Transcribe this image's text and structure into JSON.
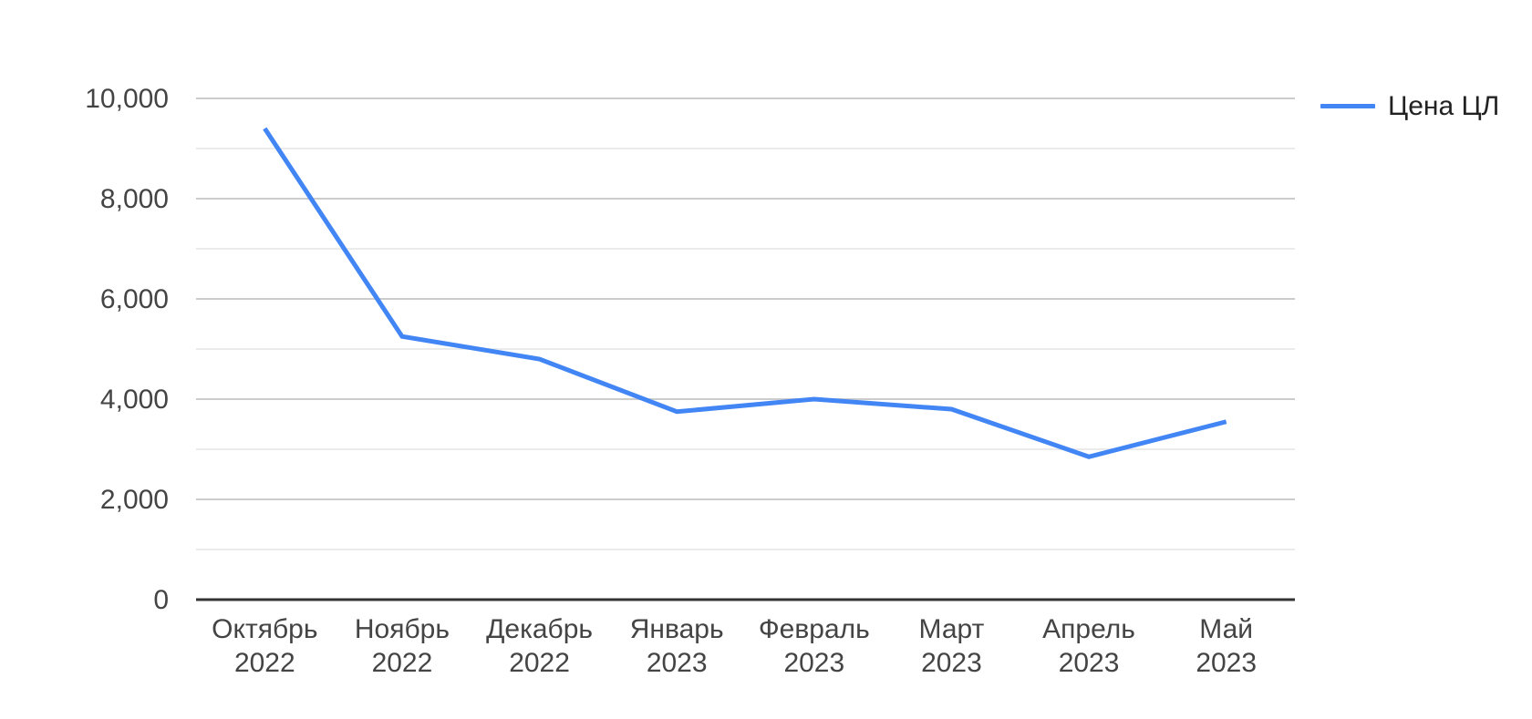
{
  "page": {
    "background_color": "#ffffff"
  },
  "legend": {
    "series_label": "Цена ЦЛ",
    "position": "right-top"
  },
  "chart_data": {
    "type": "line",
    "title": "",
    "xlabel": "",
    "ylabel": "",
    "categories": [
      "Октябрь 2022",
      "Ноябрь 2022",
      "Декабрь 2022",
      "Январь 2023",
      "Февраль 2023",
      "Март 2023",
      "Апрель 2023",
      "Май 2023"
    ],
    "category_labels_two_line": [
      [
        "Октябрь",
        "2022"
      ],
      [
        "Ноябрь",
        "2022"
      ],
      [
        "Декабрь",
        "2022"
      ],
      [
        "Январь",
        "2023"
      ],
      [
        "Февраль",
        "2023"
      ],
      [
        "Март",
        "2023"
      ],
      [
        "Апрель",
        "2023"
      ],
      [
        "Май",
        "2023"
      ]
    ],
    "series": [
      {
        "name": "Цена ЦЛ",
        "values": [
          9400,
          5250,
          4800,
          3750,
          4000,
          3800,
          2850,
          3550
        ],
        "color": "#4285f4"
      }
    ],
    "ylim": [
      0,
      10000
    ],
    "y_major_ticks": [
      {
        "value": 0,
        "label": "0"
      },
      {
        "value": 2000,
        "label": "2,000"
      },
      {
        "value": 4000,
        "label": "4,000"
      },
      {
        "value": 6000,
        "label": "6,000"
      },
      {
        "value": 8000,
        "label": "8,000"
      },
      {
        "value": 10000,
        "label": "10,000"
      }
    ],
    "y_minor_ticks": [
      1000,
      3000,
      5000,
      7000,
      9000
    ],
    "grid": true,
    "legend_position": "right-top",
    "colors": {
      "series": "#4285f4",
      "grid_major": "#cccccc",
      "grid_minor": "#ebebeb",
      "axis_baseline": "#333333",
      "tick_text": "#444444",
      "legend_text": "#222222",
      "background": "#ffffff"
    }
  }
}
